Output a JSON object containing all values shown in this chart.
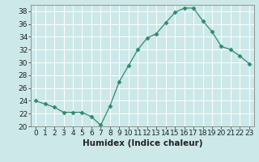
{
  "x": [
    0,
    1,
    2,
    3,
    4,
    5,
    6,
    7,
    8,
    9,
    10,
    11,
    12,
    13,
    14,
    15,
    16,
    17,
    18,
    19,
    20,
    21,
    22,
    23
  ],
  "y": [
    24,
    23.5,
    23,
    22.2,
    22.2,
    22.2,
    21.5,
    20.2,
    23.2,
    27,
    29.5,
    32,
    33.8,
    34.5,
    36.2,
    37.8,
    38.5,
    38.5,
    36.5,
    34.8,
    32.5,
    32,
    31,
    29.8
  ],
  "line_color": "#2e8b6e",
  "marker": "D",
  "marker_size": 2.5,
  "bg_color": "#cce8e8",
  "grid_color": "#ffffff",
  "xlabel": "Humidex (Indice chaleur)",
  "xlim": [
    -0.5,
    23.5
  ],
  "ylim": [
    20,
    39
  ],
  "yticks": [
    20,
    22,
    24,
    26,
    28,
    30,
    32,
    34,
    36,
    38
  ],
  "xticks": [
    0,
    1,
    2,
    3,
    4,
    5,
    6,
    7,
    8,
    9,
    10,
    11,
    12,
    13,
    14,
    15,
    16,
    17,
    18,
    19,
    20,
    21,
    22,
    23
  ],
  "xlabel_fontsize": 7.5,
  "tick_fontsize": 6.5
}
